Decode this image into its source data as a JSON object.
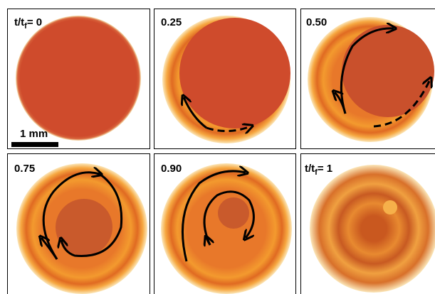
{
  "panels": [
    {
      "label_parts": [
        "t/t",
        "f",
        "= 0"
      ]
    },
    {
      "label": "0.25"
    },
    {
      "label": "0.50"
    },
    {
      "label": "0.75"
    },
    {
      "label": "0.90"
    },
    {
      "label_parts": [
        "t/t",
        "f",
        "= 1"
      ]
    }
  ],
  "scale_bar": "1 mm"
}
